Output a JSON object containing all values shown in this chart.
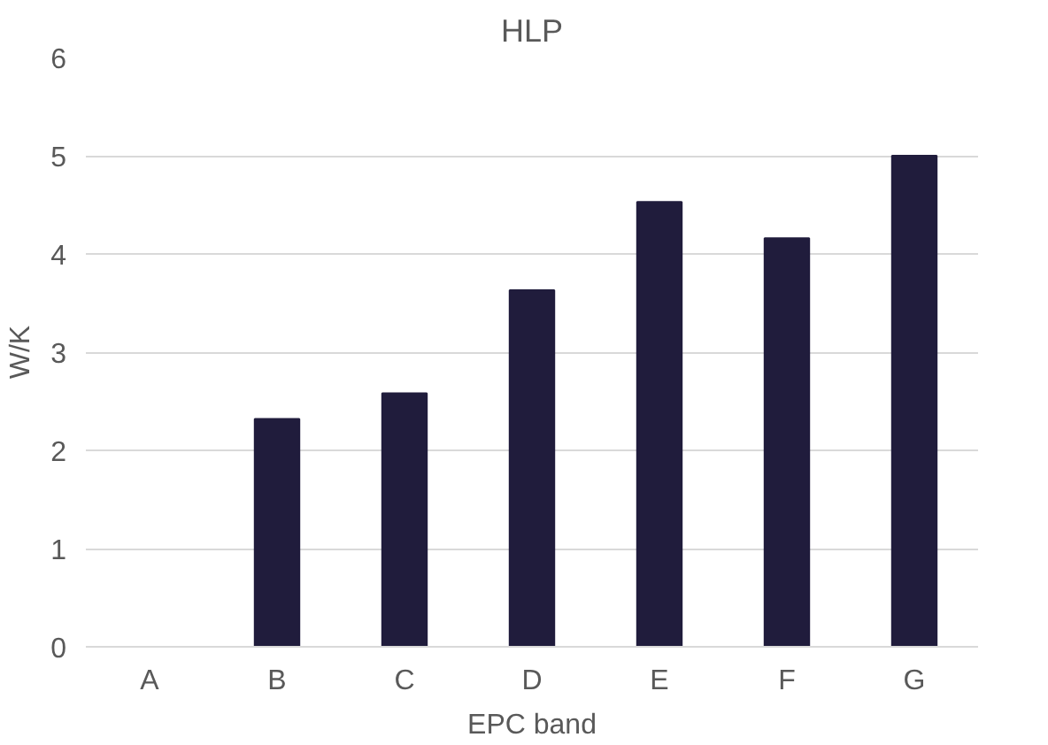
{
  "chart_data": {
    "type": "bar",
    "title": "HLP",
    "xlabel": "EPC band",
    "ylabel": "W/K",
    "categories": [
      "A",
      "B",
      "C",
      "D",
      "E",
      "F",
      "G"
    ],
    "values": [
      null,
      2.32,
      2.58,
      3.63,
      4.53,
      4.16,
      5.0
    ],
    "color": "#201c3c",
    "ylim": [
      0,
      6
    ],
    "yticks": [
      0,
      1,
      2,
      3,
      4,
      5,
      6
    ],
    "grid": "y"
  }
}
